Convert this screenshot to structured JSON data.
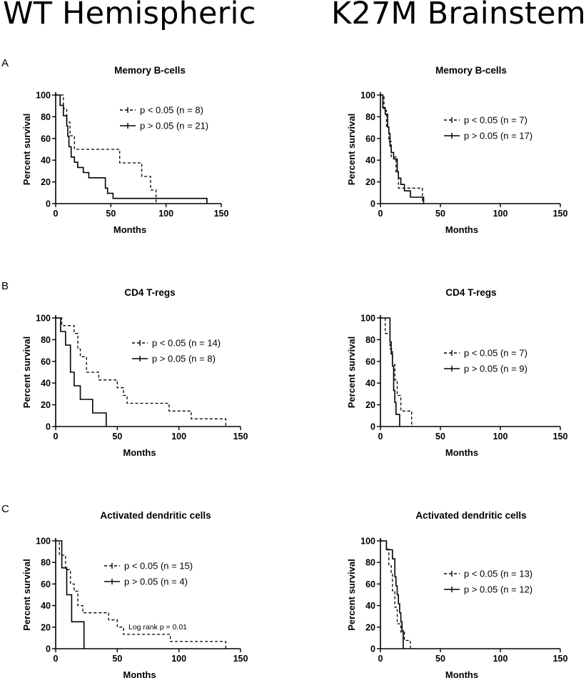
{
  "header": {
    "left_title": "WT Hemispheric",
    "right_title": "K27M Brainstem"
  },
  "row_labels": [
    "A",
    "B",
    "C"
  ],
  "chart_data": [
    {
      "type": "line",
      "title": "Memory B-cells",
      "xlabel": "Months",
      "ylabel": "Percent survival",
      "xlim": [
        0,
        150
      ],
      "ylim": [
        0,
        100
      ],
      "xticks": [
        0,
        50,
        100,
        150
      ],
      "yticks": [
        0,
        20,
        40,
        60,
        80,
        100
      ],
      "legend_position": "top-right",
      "series": [
        {
          "name": "p < 0.05 (n = 8)",
          "style": "dashed",
          "x": [
            0,
            7,
            10,
            13,
            17,
            58,
            78,
            86,
            91
          ],
          "y": [
            100,
            87.5,
            75,
            62.5,
            50,
            37.5,
            25,
            12.5,
            0
          ]
        },
        {
          "name": "p > 0.05 (n = 21)",
          "style": "solid",
          "x": [
            0,
            4,
            7,
            10,
            11,
            12,
            14,
            17,
            20,
            25,
            30,
            45,
            47,
            52,
            60,
            137
          ],
          "y": [
            100,
            90.5,
            81,
            71.4,
            62,
            52.4,
            42.9,
            38.1,
            33.3,
            28.6,
            23.8,
            14.3,
            9.5,
            4.8,
            4.8,
            0
          ]
        }
      ]
    },
    {
      "type": "line",
      "title": "Memory B-cells",
      "xlabel": "Months",
      "ylabel": "Percent survival",
      "xlim": [
        0,
        150
      ],
      "ylim": [
        0,
        100
      ],
      "xticks": [
        0,
        50,
        100,
        150
      ],
      "yticks": [
        0,
        20,
        40,
        60,
        80,
        100
      ],
      "legend_position": "right",
      "series": [
        {
          "name": "p < 0.05 (n = 7)",
          "style": "dashed",
          "x": [
            0,
            3,
            5,
            7,
            9,
            13,
            15,
            16,
            35
          ],
          "y": [
            100,
            85.7,
            71.4,
            57.1,
            42.9,
            28.6,
            14.3,
            14.3,
            0
          ]
        },
        {
          "name": "p > 0.05 (n = 17)",
          "style": "solid",
          "x": [
            0,
            2,
            4,
            6,
            7,
            8,
            9,
            11,
            13,
            14,
            15,
            17,
            20,
            25,
            36
          ],
          "y": [
            100,
            88.2,
            82.4,
            70.6,
            64.7,
            52.9,
            47.1,
            41.2,
            41.2,
            29.4,
            23.5,
            17.6,
            11.8,
            5.9,
            0
          ]
        }
      ]
    },
    {
      "type": "line",
      "title": "CD4 T-regs",
      "xlabel": "Months",
      "ylabel": "Percent survival",
      "xlim": [
        0,
        150
      ],
      "ylim": [
        0,
        100
      ],
      "xticks": [
        0,
        50,
        100,
        150
      ],
      "yticks": [
        0,
        20,
        40,
        60,
        80,
        100
      ],
      "legend_position": "right",
      "series": [
        {
          "name": "p < 0.05 (n = 14)",
          "style": "dashed",
          "x": [
            0,
            5,
            15,
            18,
            20,
            25,
            35,
            50,
            55,
            58,
            92,
            110,
            138
          ],
          "y": [
            100,
            92.9,
            85.7,
            71.4,
            64.3,
            50,
            42.9,
            35.7,
            28.6,
            21.4,
            14.3,
            7.1,
            0
          ]
        },
        {
          "name": "p > 0.05 (n = 8)",
          "style": "solid",
          "x": [
            0,
            4,
            8,
            12,
            15,
            20,
            30,
            41
          ],
          "y": [
            100,
            87.5,
            75,
            50,
            37.5,
            25,
            12.5,
            0
          ]
        }
      ]
    },
    {
      "type": "line",
      "title": "CD4 T-regs",
      "xlabel": "Months",
      "ylabel": "Percent survival",
      "xlim": [
        0,
        150
      ],
      "ylim": [
        0,
        100
      ],
      "xticks": [
        0,
        50,
        100,
        150
      ],
      "yticks": [
        0,
        20,
        40,
        60,
        80,
        100
      ],
      "legend_position": "right",
      "series": [
        {
          "name": "p < 0.05 (n = 7)",
          "style": "dashed",
          "x": [
            0,
            4,
            8,
            10,
            12,
            14,
            17,
            26
          ],
          "y": [
            100,
            85.7,
            71.4,
            57.1,
            42.9,
            28.6,
            14.3,
            0
          ]
        },
        {
          "name": "p > 0.05 (n = 9)",
          "style": "solid",
          "x": [
            0,
            8,
            9,
            10,
            11,
            12,
            13,
            14,
            16
          ],
          "y": [
            100,
            77.8,
            66.7,
            55.6,
            33.3,
            22.2,
            11.1,
            11.1,
            0
          ]
        }
      ]
    },
    {
      "type": "line",
      "title": "Activated dendritic cells",
      "xlabel": "Months",
      "ylabel": "Percent survival",
      "xlim": [
        0,
        150
      ],
      "ylim": [
        0,
        100
      ],
      "xticks": [
        0,
        50,
        100,
        150
      ],
      "yticks": [
        0,
        20,
        40,
        60,
        80,
        100
      ],
      "legend_position": "right",
      "annotation": "Log rank p = 0.01",
      "series": [
        {
          "name": "p < 0.05 (n = 15)",
          "style": "dashed",
          "x": [
            0,
            3,
            8,
            12,
            15,
            18,
            22,
            25,
            43,
            50,
            55,
            93,
            138
          ],
          "y": [
            100,
            86.7,
            73.3,
            60,
            53.3,
            40,
            33.3,
            33.3,
            26.7,
            20,
            13.3,
            6.7,
            0
          ]
        },
        {
          "name": "p > 0.05 (n = 4)",
          "style": "solid",
          "x": [
            0,
            5,
            9,
            13,
            23
          ],
          "y": [
            100,
            75,
            50,
            25,
            0
          ]
        }
      ]
    },
    {
      "type": "line",
      "title": "Activated dendritic cells",
      "xlabel": "Months",
      "ylabel": "Percent survival",
      "xlim": [
        0,
        150
      ],
      "ylim": [
        0,
        100
      ],
      "xticks": [
        0,
        50,
        100,
        150
      ],
      "yticks": [
        0,
        20,
        40,
        60,
        80,
        100
      ],
      "legend_position": "right",
      "series": [
        {
          "name": "p < 0.05 (n = 13)",
          "style": "dashed",
          "x": [
            0,
            5,
            7,
            9,
            10,
            12,
            14,
            17,
            20,
            25
          ],
          "y": [
            100,
            92.3,
            76.9,
            69.2,
            53.8,
            38.5,
            23.1,
            15.4,
            7.7,
            0
          ]
        },
        {
          "name": "p > 0.05 (n = 12)",
          "style": "solid",
          "x": [
            0,
            5,
            10,
            12,
            13,
            14,
            15,
            16,
            17,
            18,
            19
          ],
          "y": [
            100,
            91.7,
            83.3,
            66.7,
            58.3,
            50,
            41.7,
            33.3,
            25,
            16.7,
            0
          ]
        }
      ]
    }
  ]
}
